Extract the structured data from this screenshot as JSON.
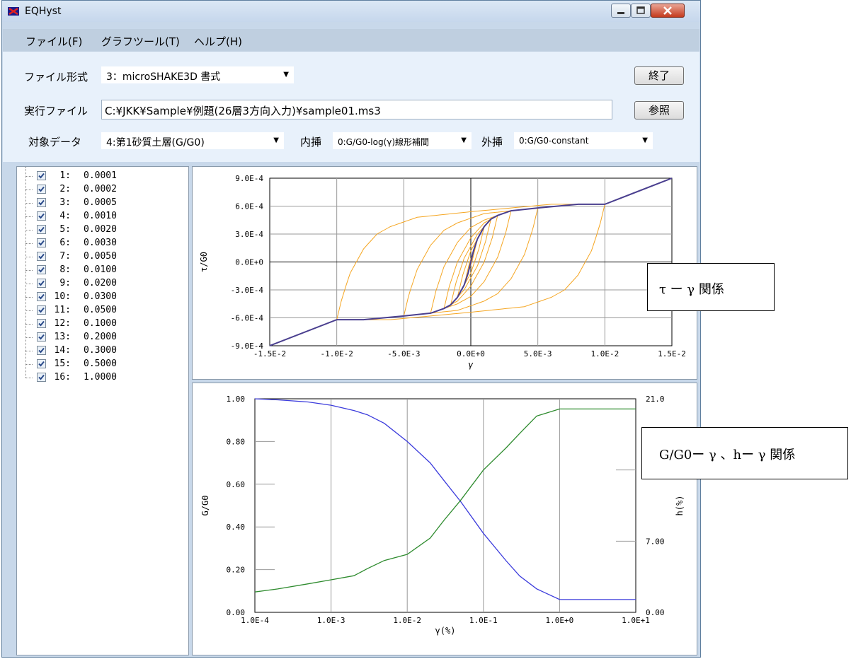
{
  "window": {
    "title": "EQHyst"
  },
  "menu": [
    "ファイル(F)",
    "グラフツール(T)",
    "ヘルプ(H)"
  ],
  "form": {
    "file_format_label": "ファイル形式",
    "file_format_value": "3：microSHAKE3D 書式",
    "exec_file_label": "実行ファイル",
    "exec_file_value": "C:¥JKK¥Sample¥例題(26層3方向入力)¥sample01.ms3",
    "target_label": "対象データ",
    "target_value": "4:第1砂質土層(G/G0)",
    "interp_label": "内挿",
    "interp_value": "0:G/G0-log(γ)線形補間",
    "extrap_label": "外挿",
    "extrap_value": "0:G/G0-constant",
    "exit_button": "終了",
    "browse_button": "参照"
  },
  "tree_items": [
    {
      "num": "1:",
      "val": "0.0001"
    },
    {
      "num": "2:",
      "val": "0.0002"
    },
    {
      "num": "3:",
      "val": "0.0005"
    },
    {
      "num": "4:",
      "val": "0.0010"
    },
    {
      "num": "5:",
      "val": "0.0020"
    },
    {
      "num": "6:",
      "val": "0.0030"
    },
    {
      "num": "7:",
      "val": "0.0050"
    },
    {
      "num": "8:",
      "val": "0.0100"
    },
    {
      "num": "9:",
      "val": "0.0200"
    },
    {
      "num": "10:",
      "val": "0.0300"
    },
    {
      "num": "11:",
      "val": "0.0500"
    },
    {
      "num": "12:",
      "val": "0.1000"
    },
    {
      "num": "13:",
      "val": "0.2000"
    },
    {
      "num": "14:",
      "val": "0.3000"
    },
    {
      "num": "15:",
      "val": "0.5000"
    },
    {
      "num": "16:",
      "val": "1.0000"
    }
  ],
  "annotations": {
    "hyst": "τ ー γ 関係",
    "curves": "G/G0ー γ 、hー γ 関係"
  },
  "colors": {
    "skeleton": "#4a3f8f",
    "loops": "#f5a623",
    "gg0": "#3b3bdc",
    "damping": "#2e8b2e"
  },
  "chart_data": [
    {
      "type": "line",
      "title": "",
      "xlabel": "γ",
      "ylabel": "τ/G0",
      "xlim": [
        -0.015,
        0.015
      ],
      "ylim": [
        -0.0009,
        0.0009
      ],
      "xticks": [
        "-1.5E-2",
        "-1.0E-2",
        "-5.0E-3",
        "0.0E+0",
        "5.0E-3",
        "1.0E-2",
        "1.5E-2"
      ],
      "yticks": [
        "9.0E-4",
        "6.0E-4",
        "3.0E-4",
        "0.0E+0",
        "-3.0E-4",
        "-6.0E-4",
        "-9.0E-4"
      ],
      "series": [
        {
          "role": "skeleton",
          "x": [
            -0.015,
            -0.01,
            -0.008,
            -0.005,
            -0.003,
            -0.002,
            -0.0015,
            -0.001,
            -0.0005,
            -0.0002,
            0,
            0.0002,
            0.0005,
            0.001,
            0.0015,
            0.002,
            0.003,
            0.005,
            0.008,
            0.01,
            0.015
          ],
          "y": [
            -0.0009,
            -0.00062,
            -0.00062,
            -0.00058,
            -0.00055,
            -0.0005,
            -0.00046,
            -0.00038,
            -0.00025,
            -0.00012,
            0,
            0.00012,
            0.00025,
            0.00038,
            0.00046,
            0.0005,
            0.00055,
            0.00058,
            0.00062,
            0.00062,
            0.0009
          ]
        },
        {
          "role": "loop",
          "amplitude": 0.01,
          "tau": 0.00062
        },
        {
          "role": "loop",
          "amplitude": 0.005,
          "tau": 0.00058
        },
        {
          "role": "loop",
          "amplitude": 0.003,
          "tau": 0.00055
        },
        {
          "role": "loop",
          "amplitude": 0.002,
          "tau": 0.0005
        },
        {
          "role": "loop",
          "amplitude": 0.0015,
          "tau": 0.00046
        },
        {
          "role": "loop",
          "amplitude": 0.001,
          "tau": 0.00038
        },
        {
          "role": "loop",
          "amplitude": 0.0005,
          "tau": 0.00025
        }
      ]
    },
    {
      "type": "line",
      "title": "",
      "xlabel": "γ(%)",
      "ylabel": "G/G0",
      "ylabel_right": "h(%)",
      "xscale": "log",
      "xlim": [
        0.0001,
        10
      ],
      "ylim": [
        0,
        1
      ],
      "y2lim": [
        0,
        21
      ],
      "xticks": [
        "1.0E-4",
        "1.0E-3",
        "1.0E-2",
        "1.0E-1",
        "1.0E+0",
        "1.0E+1"
      ],
      "yticks": [
        "1.00",
        "0.80",
        "0.60",
        "0.40",
        "0.20",
        "0.00"
      ],
      "y2ticks": [
        "21.0",
        "7.00",
        "0.00"
      ],
      "series": [
        {
          "role": "gg0",
          "axis": "left",
          "x": [
            0.0001,
            0.0002,
            0.0005,
            0.001,
            0.002,
            0.003,
            0.005,
            0.01,
            0.02,
            0.03,
            0.05,
            0.1,
            0.2,
            0.3,
            0.5,
            1.0,
            10
          ],
          "y": [
            1.0,
            0.995,
            0.985,
            0.97,
            0.945,
            0.925,
            0.885,
            0.8,
            0.7,
            0.62,
            0.52,
            0.37,
            0.24,
            0.17,
            0.11,
            0.06,
            0.06
          ]
        },
        {
          "role": "damping",
          "axis": "right",
          "x": [
            0.0001,
            0.0002,
            0.0005,
            0.001,
            0.002,
            0.003,
            0.005,
            0.01,
            0.02,
            0.03,
            0.05,
            0.1,
            0.2,
            0.3,
            0.5,
            1.0,
            10
          ],
          "y": [
            2.0,
            2.3,
            2.8,
            3.2,
            3.6,
            4.3,
            5.1,
            5.7,
            7.3,
            9.0,
            11.0,
            14.0,
            16.2,
            17.6,
            19.3,
            20.0,
            20.0
          ]
        }
      ]
    }
  ]
}
